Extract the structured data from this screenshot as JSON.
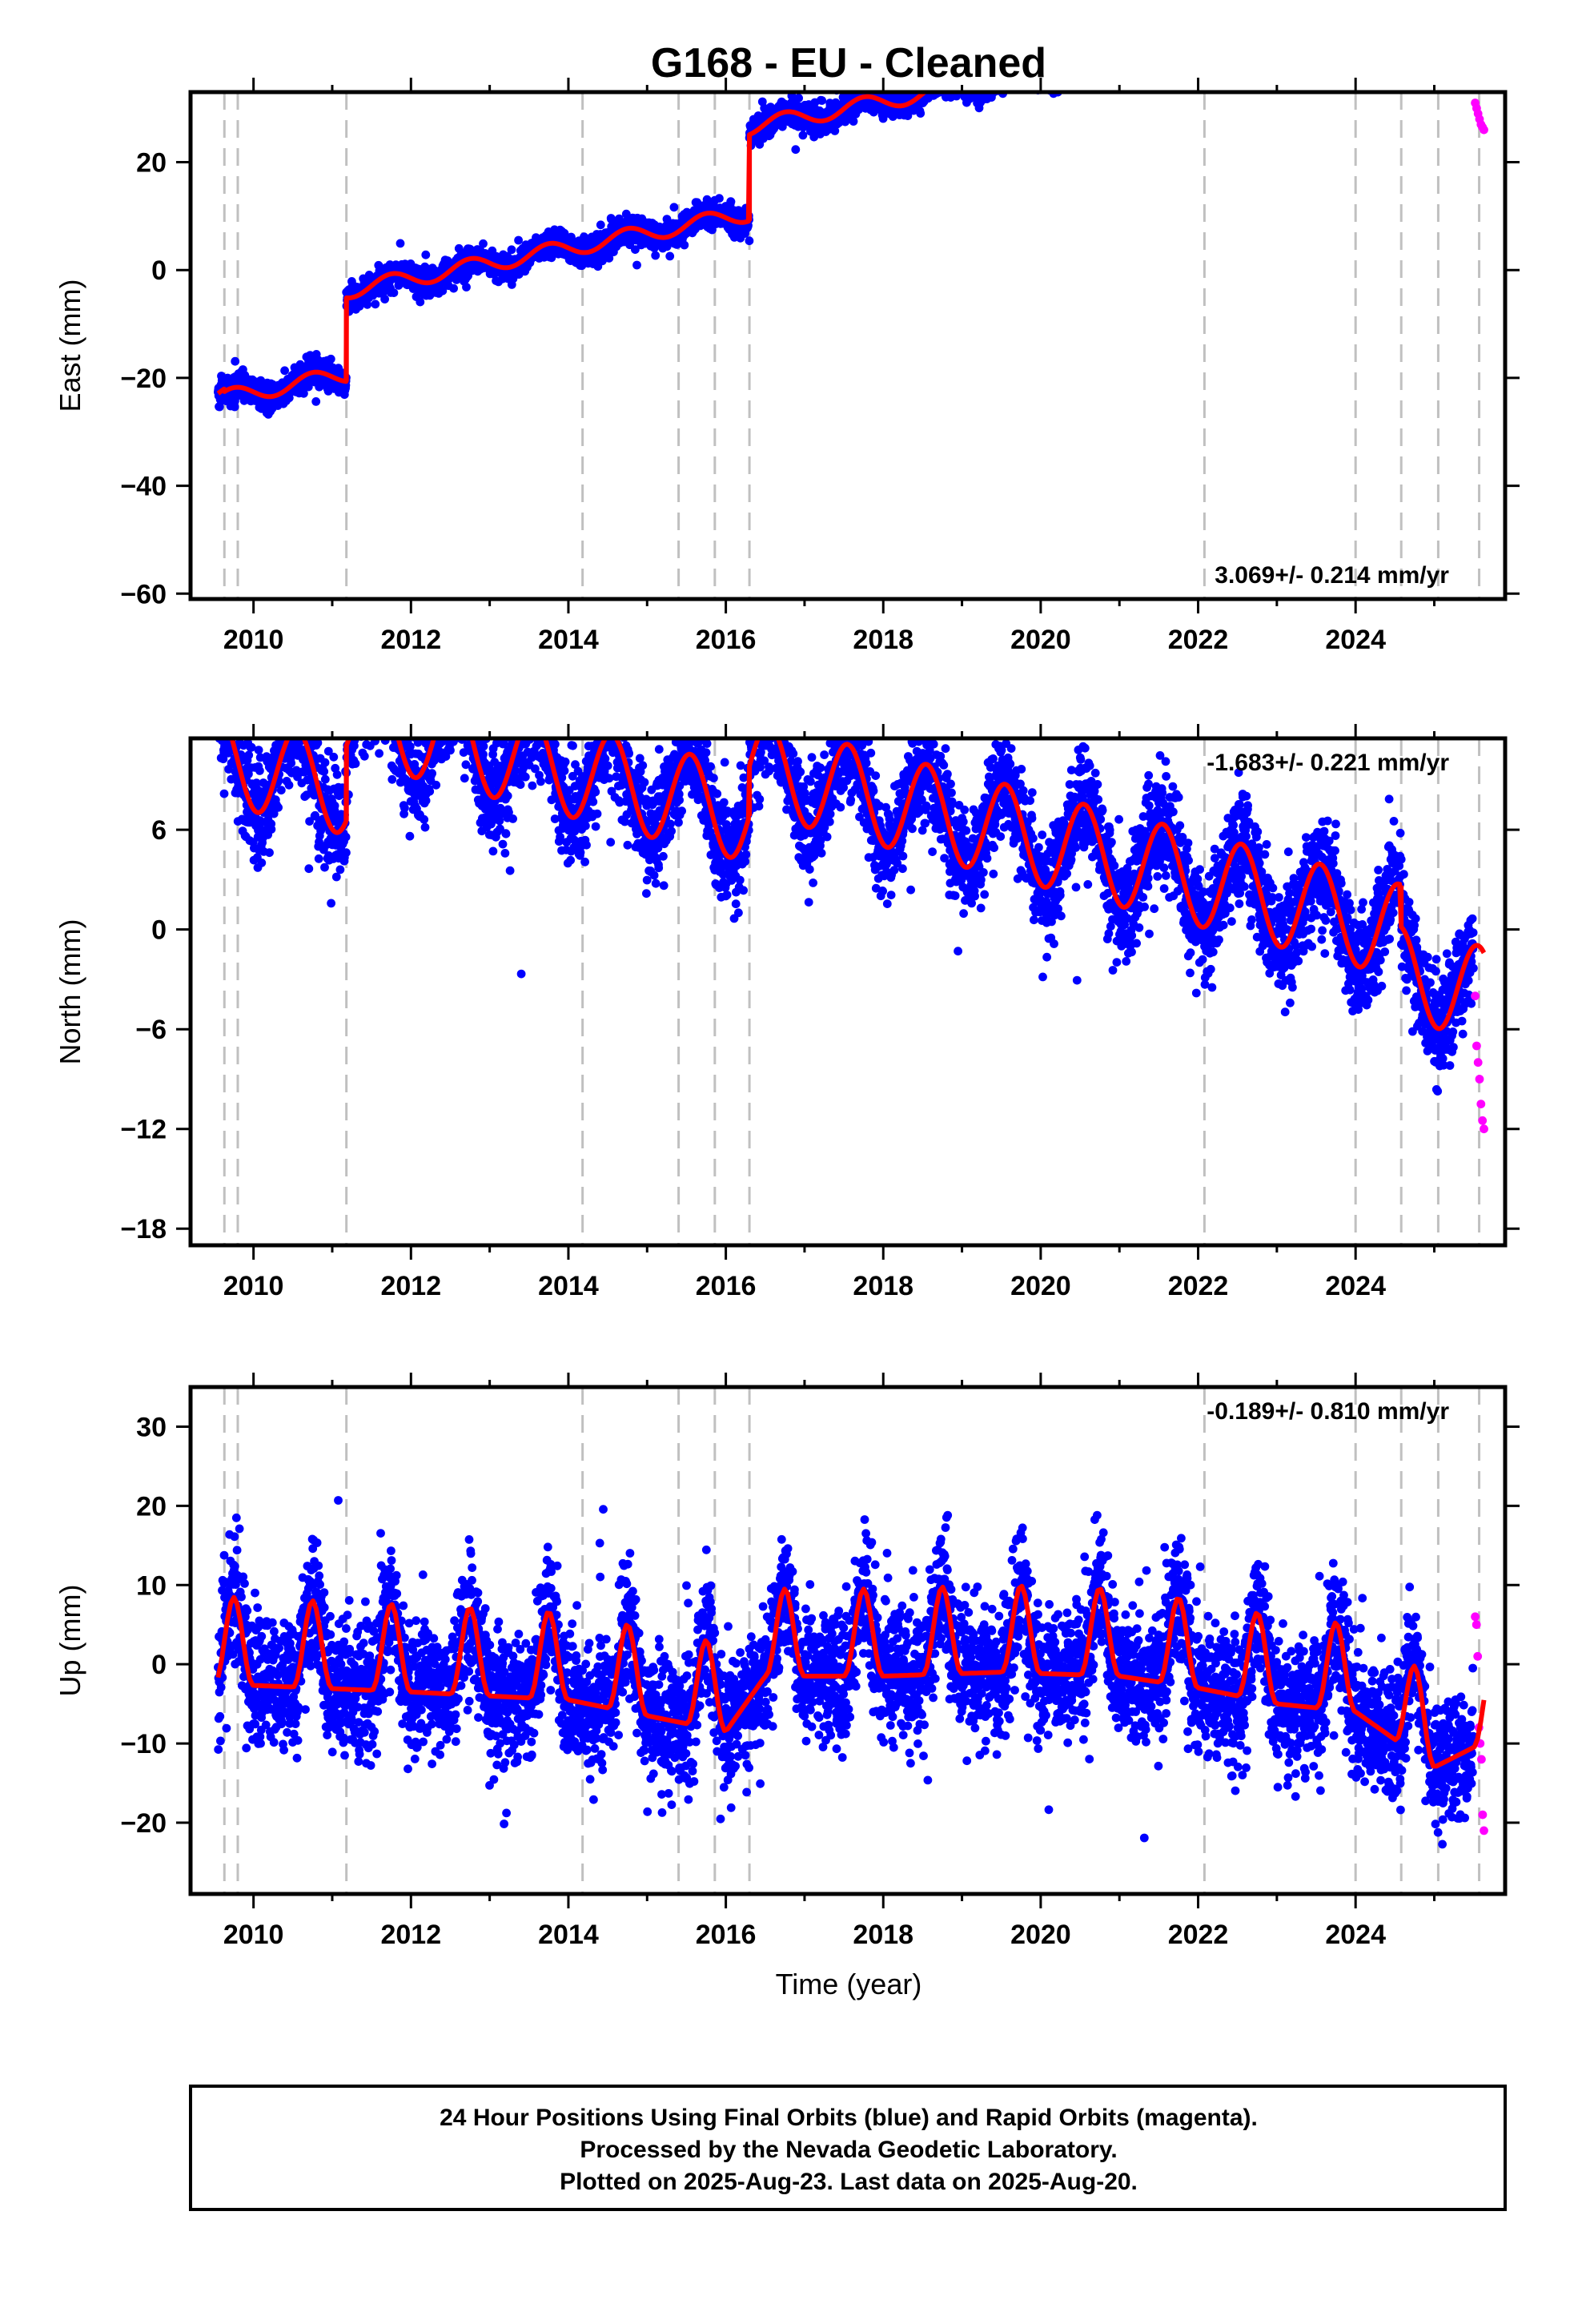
{
  "title": "G168  - EU - Cleaned",
  "xlabel": "Time (year)",
  "footer": {
    "line1": "24 Hour Positions Using Final Orbits (blue) and Rapid Orbits (magenta).",
    "line2": "Processed by the Nevada Geodetic Laboratory.",
    "line3": "Plotted on 2025-Aug-23. Last data on 2025-Aug-20."
  },
  "colors": {
    "final": "#0000ff",
    "rapid": "#ff00ff",
    "model": "#ff0000",
    "event_lines": "#c0c0c0",
    "frame": "#000000"
  },
  "chart_data": [
    {
      "type": "scatter",
      "panel": "east",
      "ylabel": "East (mm)",
      "rate_label": "3.069+/- 0.214 mm/yr",
      "rate_position": "bottom-right",
      "xlim": [
        2009.2,
        2025.9
      ],
      "ylim": [
        -61,
        33
      ],
      "xticks": [
        2010,
        2012,
        2014,
        2016,
        2018,
        2020,
        2022,
        2024
      ],
      "yticks": [
        -60,
        -40,
        -20,
        0,
        20
      ],
      "ytick_labels": [
        "−60",
        "−40",
        "−20",
        "0",
        "20"
      ],
      "event_lines": [
        2009.63,
        2009.8,
        2011.18,
        2014.18,
        2015.4,
        2015.86,
        2016.3,
        2022.08,
        2024.0,
        2024.58,
        2025.05,
        2025.57
      ],
      "data_span": [
        2009.55,
        2025.63
      ],
      "series": [
        {
          "role": "final",
          "color": "#0000ff",
          "x_range": [
            2009.55,
            2025.5
          ],
          "spread": 1.2
        },
        {
          "role": "rapid",
          "color": "#ff00ff",
          "x_range": [
            2025.52,
            2025.63
          ],
          "y": [
            31,
            30,
            29,
            28,
            27,
            26.5,
            26
          ]
        },
        {
          "role": "model",
          "color": "#ff0000",
          "trend": {
            "ref_x": 2017.0,
            "ref_y": -2.5,
            "rate": 2.8
          },
          "annual_amplitude": 1.5,
          "phase": 2.5,
          "steps": [
            [
              2009.63,
              -0.5
            ],
            [
              2011.18,
              15.5
            ],
            [
              2016.3,
              16.0
            ],
            [
              2024.58,
              4.0
            ],
            [
              2025.05,
              3.0
            ]
          ],
          "segments": [
            [
              2009.55,
              2011.18
            ],
            [
              2011.18,
              2016.3
            ],
            [
              2016.3,
              2024.58
            ],
            [
              2024.58,
              2025.63
            ]
          ]
        }
      ]
    },
    {
      "type": "scatter",
      "panel": "north",
      "ylabel": "North (mm)",
      "rate_label": "-1.683+/- 0.221 mm/yr",
      "rate_position": "top-right",
      "xlim": [
        2009.2,
        2025.9
      ],
      "ylim": [
        -19,
        11.5
      ],
      "xticks": [
        2010,
        2012,
        2014,
        2016,
        2018,
        2020,
        2022,
        2024
      ],
      "yticks": [
        -18,
        -12,
        -6,
        0,
        6
      ],
      "ytick_labels": [
        "−18",
        "−12",
        "−6",
        "0",
        "6"
      ],
      "event_lines": [
        2009.63,
        2009.8,
        2011.18,
        2014.18,
        2015.4,
        2015.86,
        2016.3,
        2022.08,
        2024.0,
        2024.58,
        2025.05,
        2025.57
      ],
      "data_span": [
        2009.55,
        2025.63
      ],
      "series": [
        {
          "role": "final",
          "color": "#0000ff",
          "x_range": [
            2009.55,
            2025.5
          ],
          "spread": 1.6
        },
        {
          "role": "rapid",
          "color": "#ff00ff",
          "x_range": [
            2025.52,
            2025.63
          ],
          "y": [
            -4,
            -7,
            -8,
            -9,
            -10.5,
            -11.5,
            -12
          ]
        },
        {
          "role": "model",
          "color": "#ff0000",
          "trend": {
            "ref_x": 2017.0,
            "ref_y": 1.5,
            "rate": -1.2
          },
          "annual_amplitude": 2.8,
          "phase": 0.3,
          "steps": [
            [
              2011.18,
              4.5
            ],
            [
              2016.3,
              3.0
            ],
            [
              2024.58,
              -2.5
            ]
          ],
          "segments": [
            [
              2009.55,
              2011.18
            ],
            [
              2011.18,
              2016.3
            ],
            [
              2016.3,
              2024.58
            ],
            [
              2024.58,
              2025.63
            ]
          ]
        }
      ]
    },
    {
      "type": "scatter",
      "panel": "up",
      "ylabel": "Up (mm)",
      "rate_label": "-0.189+/- 0.810 mm/yr",
      "rate_position": "top-right",
      "xlim": [
        2009.2,
        2025.9
      ],
      "ylim": [
        -29,
        35
      ],
      "xticks": [
        2010,
        2012,
        2014,
        2016,
        2018,
        2020,
        2022,
        2024
      ],
      "yticks": [
        -20,
        -10,
        0,
        10,
        20,
        30
      ],
      "ytick_labels": [
        "−20",
        "−10",
        "0",
        "10",
        "20",
        "30"
      ],
      "event_lines": [
        2009.63,
        2009.8,
        2011.18,
        2014.18,
        2015.4,
        2015.86,
        2016.3,
        2022.08,
        2024.0,
        2024.58,
        2025.05,
        2025.57
      ],
      "data_span": [
        2009.55,
        2025.63
      ],
      "series": [
        {
          "role": "final",
          "color": "#0000ff",
          "x_range": [
            2009.55,
            2025.5
          ],
          "spread": 4.0
        },
        {
          "role": "rapid",
          "color": "#ff00ff",
          "x_range": [
            2025.52,
            2025.63
          ],
          "y": [
            6,
            5,
            1,
            -8,
            -10,
            -12,
            -19,
            -21
          ]
        },
        {
          "role": "model",
          "color": "#ff0000",
          "baseline": [
            [
              2009.6,
              -2.5
            ],
            [
              2012.0,
              -3.5
            ],
            [
              2014.0,
              -4.5
            ],
            [
              2016.0,
              -8.5
            ],
            [
              2016.5,
              -1.5
            ],
            [
              2018.0,
              -1.5
            ],
            [
              2019.5,
              -1.0
            ],
            [
              2021.0,
              -1.5
            ],
            [
              2022.0,
              -3.0
            ],
            [
              2023.0,
              -5.0
            ],
            [
              2024.0,
              -6.0
            ],
            [
              2025.0,
              -13.0
            ],
            [
              2025.6,
              -10.0
            ]
          ],
          "annual_amplitude": 11.0,
          "phase": 0.5
        }
      ]
    }
  ]
}
